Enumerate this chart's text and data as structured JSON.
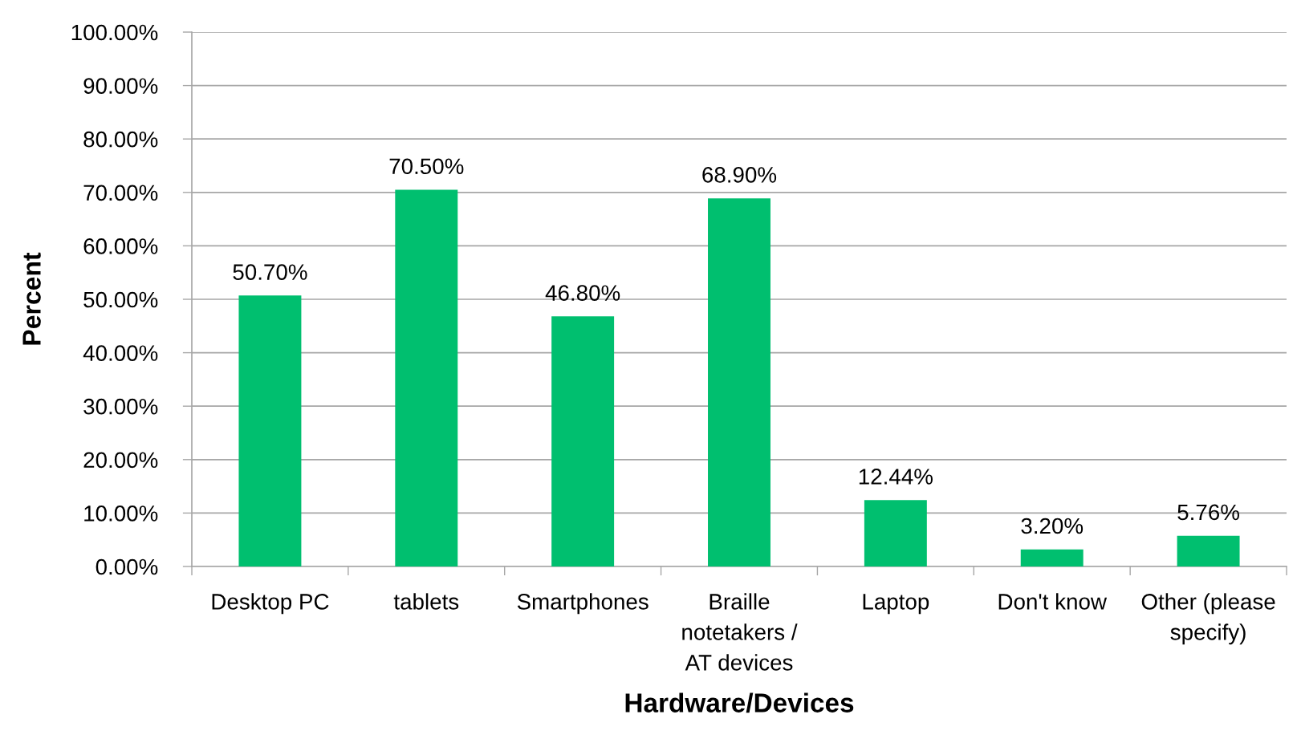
{
  "chart_data": {
    "type": "bar",
    "xlabel": "Hardware/Devices",
    "ylabel": "Percent",
    "categories": [
      "Desktop PC",
      "tablets",
      "Smartphones",
      "Braille\nnotetakers /\nAT devices",
      "Laptop",
      "Don't know",
      "Other (please\nspecify)"
    ],
    "values": [
      50.7,
      70.5,
      46.8,
      68.9,
      12.44,
      3.2,
      5.76
    ],
    "color": "#00bf6f",
    "value_labels": [
      "50.70%",
      "70.50%",
      "46.80%",
      "68.90%",
      "12.44%",
      "3.20%",
      "5.76%"
    ],
    "ylim": [
      0,
      100
    ],
    "yticks": [
      {
        "value": 0,
        "label": "0.00%"
      },
      {
        "value": 10,
        "label": "10.00%"
      },
      {
        "value": 20,
        "label": "20.00%"
      },
      {
        "value": 30,
        "label": "30.00%"
      },
      {
        "value": 40,
        "label": "40.00%"
      },
      {
        "value": 50,
        "label": "50.00%"
      },
      {
        "value": 60,
        "label": "60.00%"
      },
      {
        "value": 70,
        "label": "70.00%"
      },
      {
        "value": 80,
        "label": "80.00%"
      },
      {
        "value": 90,
        "label": "90.00%"
      },
      {
        "value": 100,
        "label": "100.00%"
      }
    ],
    "grid": "y"
  }
}
